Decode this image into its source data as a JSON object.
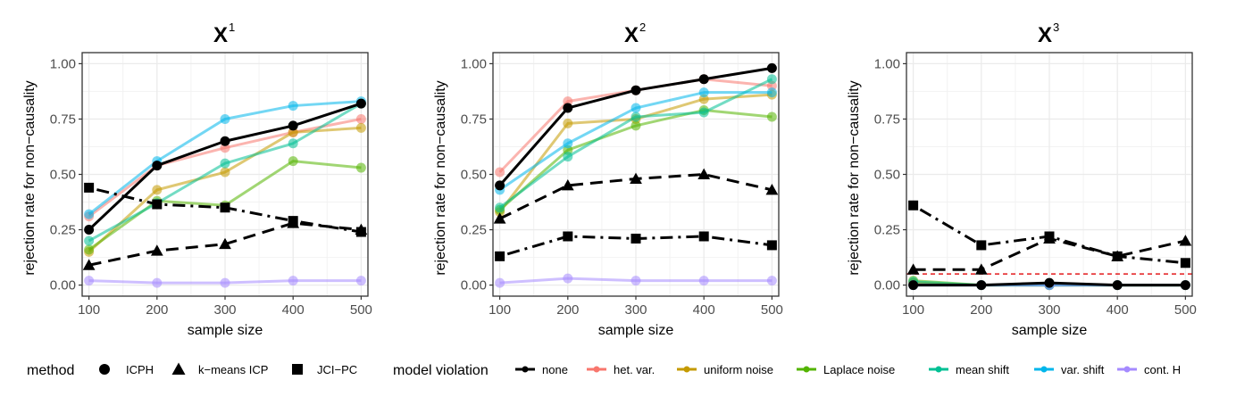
{
  "chart_data": [
    {
      "type": "line",
      "title": "X",
      "title_superscript": "1",
      "xlabel": "sample size",
      "ylabel": "rejection rate for non−causality",
      "x": [
        100,
        200,
        300,
        400,
        500
      ],
      "xlim": [
        90,
        510
      ],
      "ylim": [
        -0.05,
        1.05
      ],
      "yticks": [
        0,
        0.25,
        0.5,
        0.75,
        1
      ],
      "ytick_labels": [
        "0.00",
        "0.25",
        "0.50",
        "0.75",
        "1.00"
      ],
      "xtick_labels": [
        "100",
        "200",
        "300",
        "400",
        "500"
      ],
      "grid": true,
      "reference_line": null,
      "series": [
        {
          "method": "ICPH",
          "violation": "het. var.",
          "values": [
            0.31,
            0.54,
            0.62,
            0.69,
            0.75
          ]
        },
        {
          "method": "ICPH",
          "violation": "uniform noise",
          "values": [
            0.15,
            0.43,
            0.51,
            0.69,
            0.71
          ]
        },
        {
          "method": "ICPH",
          "violation": "Laplace noise",
          "values": [
            0.16,
            0.38,
            0.36,
            0.56,
            0.53
          ]
        },
        {
          "method": "ICPH",
          "violation": "mean shift",
          "values": [
            0.2,
            0.37,
            0.55,
            0.64,
            0.82
          ]
        },
        {
          "method": "ICPH",
          "violation": "var. shift",
          "values": [
            0.32,
            0.56,
            0.75,
            0.81,
            0.83
          ]
        },
        {
          "method": "ICPH",
          "violation": "cont. H",
          "values": [
            0.02,
            0.01,
            0.01,
            0.02,
            0.02
          ]
        },
        {
          "method": "ICPH",
          "violation": "none",
          "values": [
            0.25,
            0.54,
            0.65,
            0.72,
            0.82
          ]
        },
        {
          "method": "k−means ICP",
          "violation": "none",
          "values": [
            0.09,
            0.155,
            0.185,
            0.28,
            0.25
          ]
        },
        {
          "method": "JCI−PC",
          "violation": "none",
          "values": [
            0.44,
            0.365,
            0.35,
            0.29,
            0.24
          ]
        }
      ]
    },
    {
      "type": "line",
      "title": "X",
      "title_superscript": "2",
      "xlabel": "sample size",
      "ylabel": "rejection rate for non−causality",
      "x": [
        100,
        200,
        300,
        400,
        500
      ],
      "xlim": [
        90,
        510
      ],
      "ylim": [
        -0.05,
        1.05
      ],
      "yticks": [
        0,
        0.25,
        0.5,
        0.75,
        1
      ],
      "ytick_labels": [
        "0.00",
        "0.25",
        "0.50",
        "0.75",
        "1.00"
      ],
      "xtick_labels": [
        "100",
        "200",
        "300",
        "400",
        "500"
      ],
      "grid": true,
      "reference_line": null,
      "series": [
        {
          "method": "ICPH",
          "violation": "het. var.",
          "values": [
            0.51,
            0.83,
            0.88,
            0.93,
            0.9
          ]
        },
        {
          "method": "ICPH",
          "violation": "uniform noise",
          "values": [
            0.33,
            0.73,
            0.75,
            0.84,
            0.86
          ]
        },
        {
          "method": "ICPH",
          "violation": "Laplace noise",
          "values": [
            0.34,
            0.61,
            0.72,
            0.79,
            0.76
          ]
        },
        {
          "method": "ICPH",
          "violation": "mean shift",
          "values": [
            0.35,
            0.58,
            0.76,
            0.78,
            0.93
          ]
        },
        {
          "method": "ICPH",
          "violation": "var. shift",
          "values": [
            0.43,
            0.64,
            0.8,
            0.87,
            0.87
          ]
        },
        {
          "method": "ICPH",
          "violation": "cont. H",
          "values": [
            0.01,
            0.03,
            0.02,
            0.02,
            0.02
          ]
        },
        {
          "method": "ICPH",
          "violation": "none",
          "values": [
            0.45,
            0.8,
            0.88,
            0.93,
            0.98
          ]
        },
        {
          "method": "k−means ICP",
          "violation": "none",
          "values": [
            0.3,
            0.45,
            0.48,
            0.5,
            0.43
          ]
        },
        {
          "method": "JCI−PC",
          "violation": "none",
          "values": [
            0.13,
            0.22,
            0.21,
            0.22,
            0.18
          ]
        }
      ]
    },
    {
      "type": "line",
      "title": "X",
      "title_superscript": "3",
      "xlabel": "sample size",
      "ylabel": "rejection rate for non−causality",
      "x": [
        100,
        200,
        300,
        400,
        500
      ],
      "xlim": [
        90,
        510
      ],
      "ylim": [
        -0.05,
        1.05
      ],
      "yticks": [
        0,
        0.25,
        0.5,
        0.75,
        1
      ],
      "ytick_labels": [
        "0.00",
        "0.25",
        "0.50",
        "0.75",
        "1.00"
      ],
      "xtick_labels": [
        "100",
        "200",
        "300",
        "400",
        "500"
      ],
      "grid": true,
      "reference_line": {
        "y": 0.05,
        "color": "#e41a1c",
        "style": "dashed"
      },
      "series": [
        {
          "method": "ICPH",
          "violation": "het. var.",
          "values": [
            0.01,
            0.0,
            0.0,
            0.0,
            0.0
          ]
        },
        {
          "method": "ICPH",
          "violation": "uniform noise",
          "values": [
            0.01,
            0.0,
            0.0,
            0.0,
            0.0
          ]
        },
        {
          "method": "ICPH",
          "violation": "Laplace noise",
          "values": [
            0.02,
            0.0,
            0.0,
            0.0,
            0.0
          ]
        },
        {
          "method": "ICPH",
          "violation": "mean shift",
          "values": [
            0.015,
            0.0,
            0.0,
            0.0,
            0.0
          ]
        },
        {
          "method": "ICPH",
          "violation": "var. shift",
          "values": [
            0.0,
            0.0,
            0.0,
            0.0,
            0.0
          ]
        },
        {
          "method": "ICPH",
          "violation": "cont. H",
          "values": [
            0.0,
            0.0,
            0.0,
            0.0,
            0.0
          ]
        },
        {
          "method": "ICPH",
          "violation": "none",
          "values": [
            0.0,
            0.0,
            0.01,
            0.0,
            0.0
          ]
        },
        {
          "method": "k−means ICP",
          "violation": "none",
          "values": [
            0.07,
            0.07,
            0.21,
            0.13,
            0.2
          ]
        },
        {
          "method": "JCI−PC",
          "violation": "none",
          "values": [
            0.36,
            0.18,
            0.22,
            0.13,
            0.1
          ]
        }
      ]
    }
  ],
  "legend": {
    "placement": "bottom",
    "method_title": "method",
    "methods": [
      {
        "name": "ICPH",
        "shape": "circle",
        "dash": "solid"
      },
      {
        "name": "k−means ICP",
        "shape": "triangle",
        "dash": "dashed"
      },
      {
        "name": "JCI−PC",
        "shape": "square",
        "dash": "dotdash"
      }
    ],
    "violation_title": "model violation",
    "violations": [
      {
        "name": "none",
        "color": "#000000"
      },
      {
        "name": "het. var.",
        "color": "#F8766D"
      },
      {
        "name": "uniform noise",
        "color": "#C49A00"
      },
      {
        "name": "Laplace noise",
        "color": "#53B400"
      },
      {
        "name": "mean shift",
        "color": "#00C094"
      },
      {
        "name": "var. shift",
        "color": "#00B6EB"
      },
      {
        "name": "cont. H",
        "color": "#A58AFF"
      }
    ]
  }
}
